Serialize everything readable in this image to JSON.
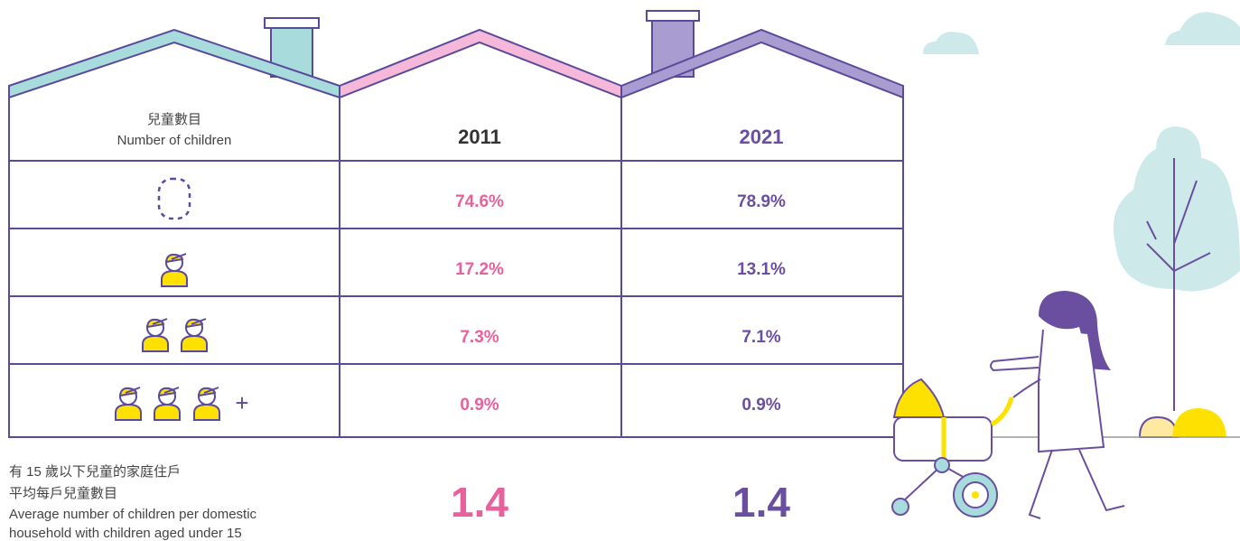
{
  "header": {
    "label_zh": "兒童數目",
    "label_en": "Number of children",
    "years": [
      "2011",
      "2021"
    ]
  },
  "rows": [
    {
      "v2011": "74.6%",
      "v2021": "78.9%"
    },
    {
      "v2011": "17.2%",
      "v2021": "13.1%"
    },
    {
      "v2011": "7.3%",
      "v2021": "7.1%"
    },
    {
      "v2011": "0.9%",
      "v2021": "0.9%"
    }
  ],
  "plus_sign": "+",
  "average": {
    "label_zh_1": "有 15 歲以下兒童的家庭住戶",
    "label_zh_2": "平均每戶兒童數目",
    "label_en_1": "Average number of children per domestic",
    "label_en_2": "household with children aged under 15",
    "values": [
      "1.4",
      "1.4"
    ]
  }
}
